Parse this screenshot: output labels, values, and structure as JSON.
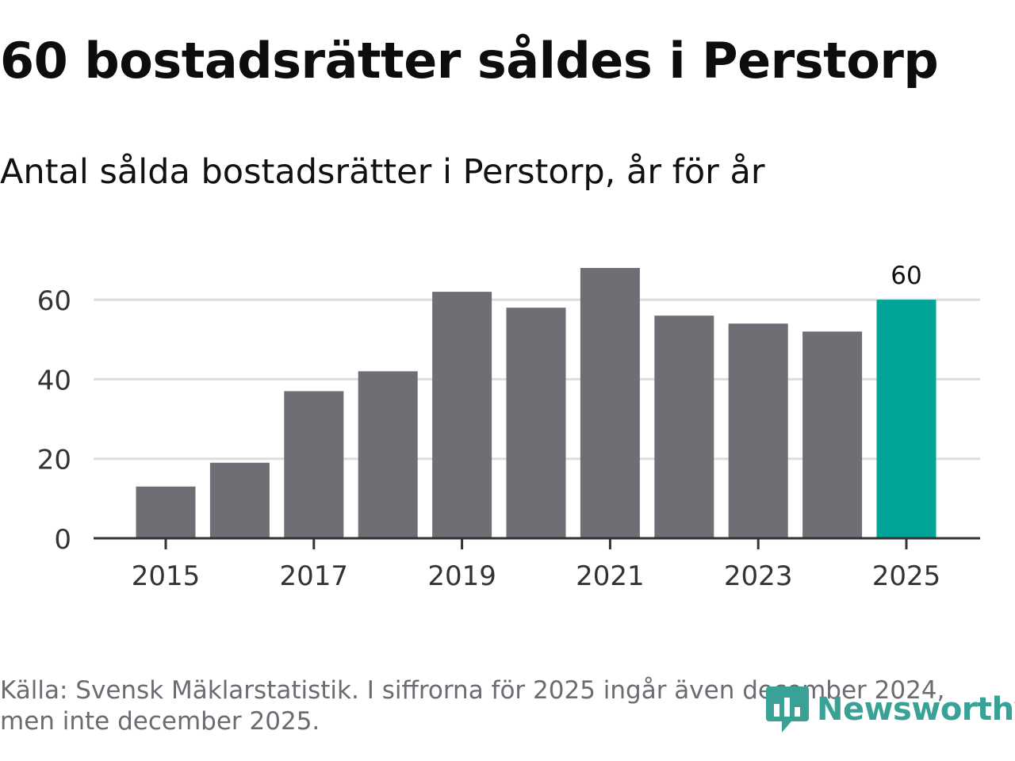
{
  "header": {
    "title": "60 bostadsrätter såldes i Perstorp",
    "subtitle": "Antal sålda bostadsrätter i Perstorp, år för år"
  },
  "footer": {
    "source_note": "Källa: Svensk Mäklarstatistik. I siffrorna för 2025 ingår även december 2024, men inte december 2025.",
    "brand": "Newsworthy"
  },
  "colors": {
    "bar": "#6f6e75",
    "highlight": "#00a499",
    "grid": "#dddddd",
    "axis": "#333333",
    "brand": "#3aa196"
  },
  "chart_data": {
    "type": "bar",
    "title": "60 bostadsrätter såldes i Perstorp",
    "subtitle": "Antal sålda bostadsrätter i Perstorp, år för år",
    "xlabel": "",
    "ylabel": "",
    "categories": [
      "2015",
      "2016",
      "2017",
      "2018",
      "2019",
      "2020",
      "2021",
      "2022",
      "2023",
      "2024",
      "2025"
    ],
    "values": [
      13,
      19,
      37,
      42,
      62,
      58,
      68,
      56,
      54,
      52,
      60
    ],
    "highlight_index": 10,
    "highlight_label": "60",
    "ylim": [
      0,
      68
    ],
    "yticks": [
      0,
      20,
      40,
      60
    ],
    "xtick_labels": [
      "2015",
      "2017",
      "2019",
      "2021",
      "2023",
      "2025"
    ],
    "grid": true,
    "legend": "none"
  }
}
